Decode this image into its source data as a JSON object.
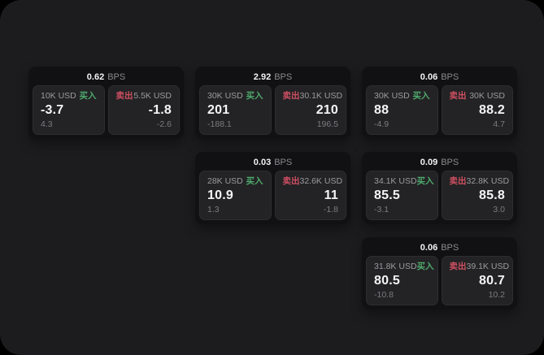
{
  "window": {
    "background": "#000000",
    "panel_background": "#1c1c1e"
  },
  "colors": {
    "buy_accent": "#4faa6d",
    "sell_accent": "#cf4f62",
    "card_background": "#111113",
    "tile_background": "#232325"
  },
  "labels": {
    "buy": "买入",
    "sell": "卖出",
    "bps_unit": "BPS"
  },
  "cards": [
    {
      "bps": "0.62",
      "grid": {
        "col": 1,
        "row": 1
      },
      "buy": {
        "amount": "10K USD",
        "price": "-3.7",
        "delta": "4.3"
      },
      "sell": {
        "amount": "5.5K USD",
        "price": "-1.8",
        "delta": "-2.6"
      }
    },
    {
      "bps": "2.92",
      "grid": {
        "col": 2,
        "row": 1
      },
      "buy": {
        "amount": "30K USD",
        "price": "201",
        "delta": "-188.1"
      },
      "sell": {
        "amount": "30.1K USD",
        "price": "210",
        "delta": "196.5"
      }
    },
    {
      "bps": "0.06",
      "grid": {
        "col": 3,
        "row": 1
      },
      "buy": {
        "amount": "30K USD",
        "price": "88",
        "delta": "-4.9"
      },
      "sell": {
        "amount": "30K USD",
        "price": "88.2",
        "delta": "4.7"
      }
    },
    {
      "bps": "0.03",
      "grid": {
        "col": 2,
        "row": 2
      },
      "buy": {
        "amount": "28K USD",
        "price": "10.9",
        "delta": "1.3"
      },
      "sell": {
        "amount": "32.6K USD",
        "price": "11",
        "delta": "-1.8"
      }
    },
    {
      "bps": "0.09",
      "grid": {
        "col": 3,
        "row": 2
      },
      "buy": {
        "amount": "34.1K USD",
        "price": "85.5",
        "delta": "-3.1"
      },
      "sell": {
        "amount": "32.8K USD",
        "price": "85.8",
        "delta": "3.0"
      }
    },
    {
      "bps": "0.06",
      "grid": {
        "col": 3,
        "row": 3
      },
      "buy": {
        "amount": "31.8K USD",
        "price": "80.5",
        "delta": "-10.8"
      },
      "sell": {
        "amount": "39.1K USD",
        "price": "80.7",
        "delta": "10.2"
      }
    }
  ]
}
